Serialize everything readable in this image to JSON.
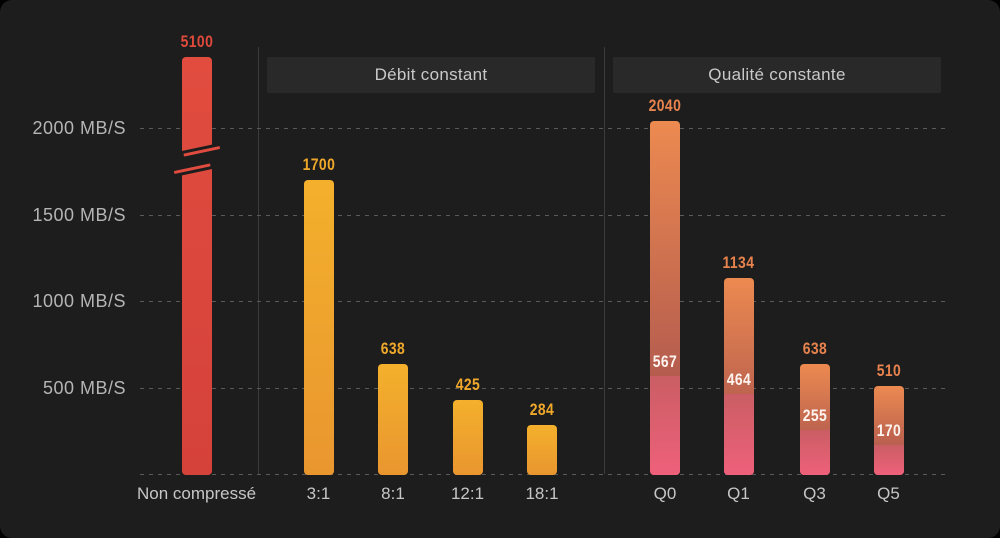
{
  "chart_data": {
    "type": "bar",
    "title": "",
    "unit": "MB/S",
    "yticks": [
      2000,
      1500,
      1000,
      500
    ],
    "ytick_labels": [
      "2000 MB/S",
      "1500 MB/S",
      "1000 MB/S",
      "500 MB/S"
    ],
    "ylim": [
      0,
      2500
    ],
    "grid": "dashed-horizontal",
    "axis_break_note": "first bar exceeds scale and is clipped with a break mark",
    "groups": [
      {
        "header": null,
        "bars": [
          {
            "label": "Non compressé",
            "value": 5100,
            "style": "red",
            "axis_break": true
          }
        ]
      },
      {
        "header": "Débit constant",
        "bars": [
          {
            "label": "3:1",
            "value": 1700,
            "style": "gold"
          },
          {
            "label": "8:1",
            "value": 638,
            "style": "gold"
          },
          {
            "label": "12:1",
            "value": 425,
            "style": "gold"
          },
          {
            "label": "18:1",
            "value": 284,
            "style": "gold"
          }
        ]
      },
      {
        "header": "Qualité constante",
        "bars": [
          {
            "label": "Q0",
            "value": 2040,
            "inner_value": 567,
            "style": "sunset"
          },
          {
            "label": "Q1",
            "value": 1134,
            "inner_value": 464,
            "style": "sunset"
          },
          {
            "label": "Q3",
            "value": 638,
            "inner_value": 255,
            "style": "sunset"
          },
          {
            "label": "Q5",
            "value": 510,
            "inner_value": 170,
            "style": "sunset"
          }
        ]
      }
    ],
    "styles": {
      "red": {
        "bar_top": "#e14c3f",
        "bar_bottom": "#d5423a",
        "label": "#df4a3c"
      },
      "gold": {
        "bar_top": "#f4b02c",
        "bar_bottom": "#e9962f",
        "label": "#f0a82b"
      },
      "sunset": {
        "bar_top": "#ec8a50",
        "bar_bottom": "#9f4a4e",
        "label": "#e8834e",
        "inner_top": "#ca5e64",
        "inner_bottom": "#ef607a",
        "inner_label": "#fdf4ef"
      }
    },
    "colors": {
      "background": "#1d1d1d",
      "gridline": "#5a5a5a",
      "separator": "#3b3b3b",
      "header_bg": "#292929",
      "header_text": "#c9c9c9",
      "axis_text": "#b5b5b5",
      "tick_text": "#c6c6c6"
    }
  }
}
